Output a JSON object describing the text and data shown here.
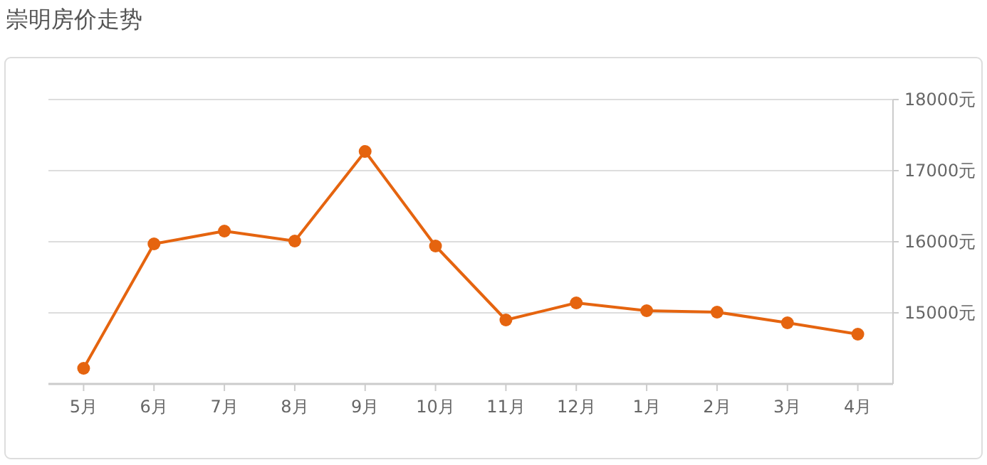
{
  "chart_data": {
    "type": "line",
    "title": "崇明房价走势",
    "categories": [
      "5月",
      "6月",
      "7月",
      "8月",
      "9月",
      "10月",
      "11月",
      "12月",
      "1月",
      "2月",
      "3月",
      "4月"
    ],
    "series": [
      {
        "color": "#e5640f",
        "values": [
          14220,
          15970,
          16150,
          16010,
          17270,
          15940,
          14900,
          15140,
          15030,
          15010,
          14860,
          14700
        ]
      }
    ],
    "ylim": [
      14000,
      18000
    ],
    "yticks": [
      {
        "value": 15000,
        "label": "15000元"
      },
      {
        "value": 16000,
        "label": "16000元"
      },
      {
        "value": 17000,
        "label": "17000元"
      },
      {
        "value": 18000,
        "label": "18000元"
      }
    ],
    "grid": "y",
    "marker": "circle",
    "line_style": "solid"
  }
}
